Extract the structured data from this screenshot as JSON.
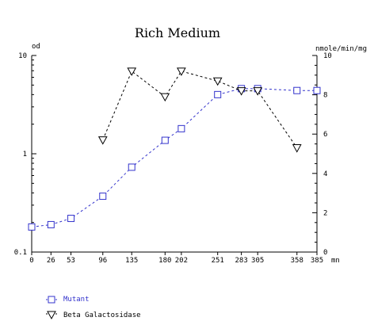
{
  "chart_data": {
    "type": "line",
    "title": "Rich Medium",
    "xlabel": "mn",
    "ylabel_left": "od",
    "ylabel_right": "nmole/min/mg",
    "x_ticks": [
      0,
      26,
      53,
      96,
      135,
      180,
      202,
      251,
      283,
      305,
      358,
      385
    ],
    "xlim": [
      0,
      385
    ],
    "y_left": {
      "scale": "log",
      "lim": [
        0.1,
        10
      ],
      "ticks": [
        "0.1",
        "1",
        "10"
      ]
    },
    "y_right": {
      "scale": "linear",
      "lim": [
        0,
        10
      ],
      "ticks": [
        "0",
        "2",
        "4",
        "6",
        "8",
        "10"
      ]
    },
    "grid": false,
    "series": [
      {
        "name": "Mutant",
        "axis": "left",
        "color": "#3333cc",
        "marker": "square",
        "x": [
          0,
          26,
          53,
          96,
          135,
          180,
          202,
          251,
          283,
          305,
          358,
          385
        ],
        "y": [
          0.18,
          0.19,
          0.22,
          0.37,
          0.73,
          1.37,
          1.8,
          4.0,
          4.6,
          4.6,
          4.4,
          4.4
        ]
      },
      {
        "name": "Beta Galactosidase",
        "axis": "right",
        "color": "#000000",
        "marker": "triangle-down",
        "x": [
          96,
          135,
          180,
          202,
          251,
          283,
          305,
          358
        ],
        "y": [
          5.7,
          9.2,
          7.9,
          9.2,
          8.7,
          8.2,
          8.2,
          5.3
        ]
      }
    ]
  },
  "legend": {
    "items": [
      {
        "label": "Mutant",
        "icon": "square-marker-icon",
        "color": "#3333cc"
      },
      {
        "label": "Beta Galactosidase",
        "icon": "triangle-down-marker-icon",
        "color": "#000000"
      }
    ]
  }
}
